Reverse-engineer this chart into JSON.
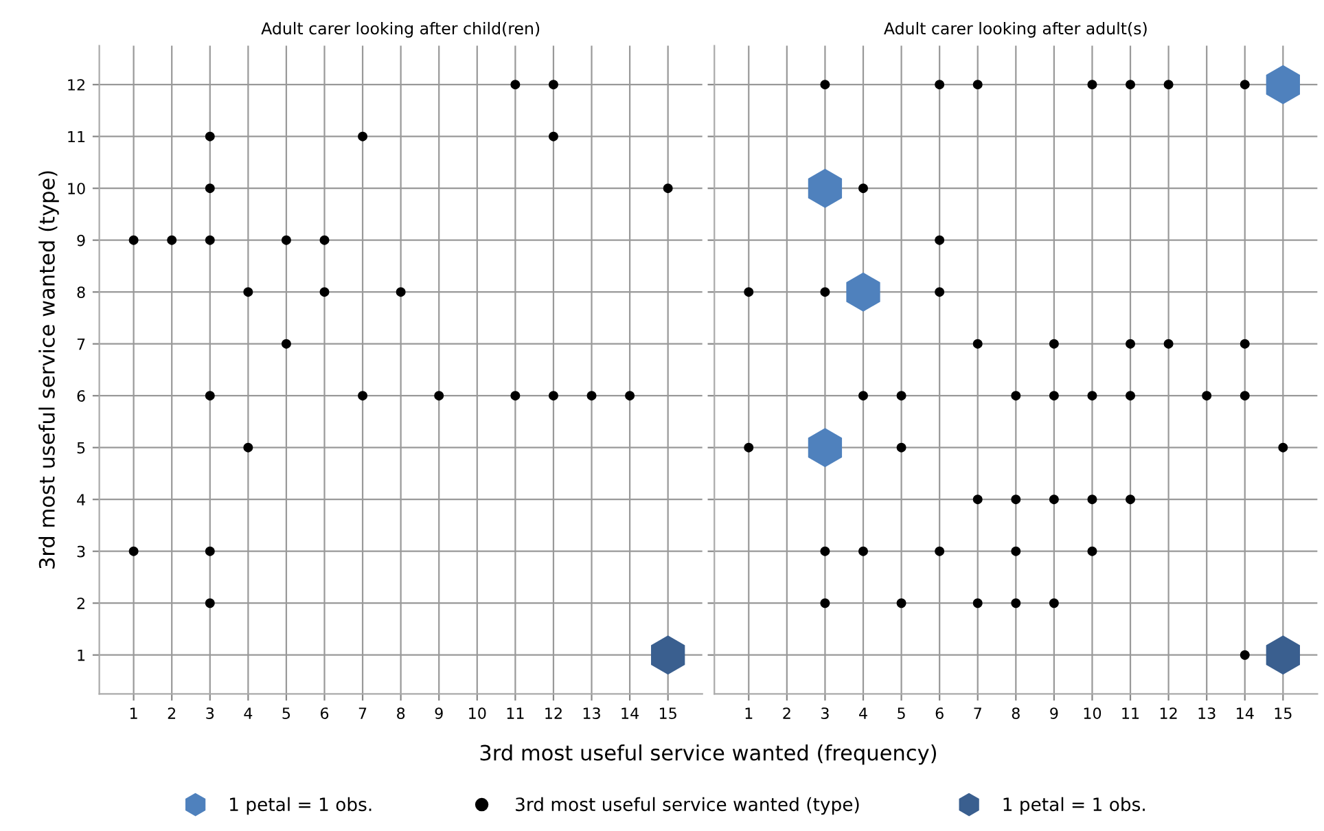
{
  "chart_data": [
    {
      "type": "scatter",
      "title": "Adult carer looking after child(ren)",
      "xlabel": "3rd most useful service wanted (frequency)",
      "ylabel": "3rd most useful service wanted (type)",
      "xlim": [
        0.1,
        15.9
      ],
      "ylim": [
        0.25,
        12.75
      ],
      "xticks": [
        1,
        2,
        3,
        4,
        5,
        6,
        7,
        8,
        9,
        10,
        11,
        12,
        13,
        14,
        15
      ],
      "yticks": [
        1,
        2,
        3,
        4,
        5,
        6,
        7,
        8,
        9,
        10,
        11,
        12
      ],
      "grid": true,
      "legend": "bottom",
      "series": [
        {
          "name": "3rd most useful service wanted (type)",
          "color": "#000000",
          "marker": "circle",
          "x": [
            11,
            12,
            3,
            7,
            12,
            3,
            15,
            1,
            2,
            3,
            5,
            6,
            4,
            6,
            8,
            5,
            3,
            7,
            9,
            11,
            12,
            13,
            14,
            4,
            1,
            3,
            3
          ],
          "values": [
            12,
            12,
            11,
            11,
            11,
            10,
            10,
            9,
            9,
            9,
            9,
            9,
            8,
            8,
            8,
            7,
            6,
            6,
            6,
            6,
            6,
            6,
            6,
            5,
            3,
            3,
            2
          ]
        },
        {
          "name": "1 petal = 1 obs.",
          "color": "#3a5f8f",
          "x": [
            15
          ],
          "values": [
            1
          ]
        }
      ]
    },
    {
      "type": "scatter",
      "title": "Adult carer looking after adult(s)",
      "xlim": [
        0.1,
        15.9
      ],
      "ylim": [
        0.25,
        12.75
      ],
      "xticks": [
        1,
        2,
        3,
        4,
        5,
        6,
        7,
        8,
        9,
        10,
        11,
        12,
        13,
        14,
        15
      ],
      "yticks": [
        1,
        2,
        3,
        4,
        5,
        6,
        7,
        8,
        9,
        10,
        11,
        12
      ],
      "grid": true,
      "tick_labels": "x",
      "series": [
        {
          "color": "#000000",
          "x": [
            3,
            6,
            7,
            10,
            11,
            12,
            14,
            4,
            6,
            1,
            3,
            6,
            7,
            9,
            11,
            12,
            14,
            4,
            5,
            8,
            9,
            10,
            11,
            13,
            14,
            1,
            5,
            15,
            7,
            8,
            9,
            10,
            11,
            3,
            4,
            6,
            8,
            10,
            3,
            5,
            7,
            8,
            9,
            14
          ],
          "values": [
            12,
            12,
            12,
            12,
            12,
            12,
            12,
            10,
            9,
            8,
            8,
            8,
            7,
            7,
            7,
            7,
            7,
            6,
            6,
            6,
            6,
            6,
            6,
            6,
            6,
            5,
            5,
            5,
            4,
            4,
            4,
            4,
            4,
            3,
            3,
            3,
            3,
            3,
            2,
            2,
            2,
            2,
            2,
            1
          ]
        },
        {
          "name": "1 petal = 1 obs.",
          "color": "#4f81bd",
          "x": [
            15,
            3,
            4,
            3
          ],
          "values": [
            12,
            10,
            8,
            5
          ]
        },
        {
          "color": "#3a5f8f",
          "x": [
            15
          ],
          "values": [
            1
          ]
        }
      ]
    }
  ]
}
